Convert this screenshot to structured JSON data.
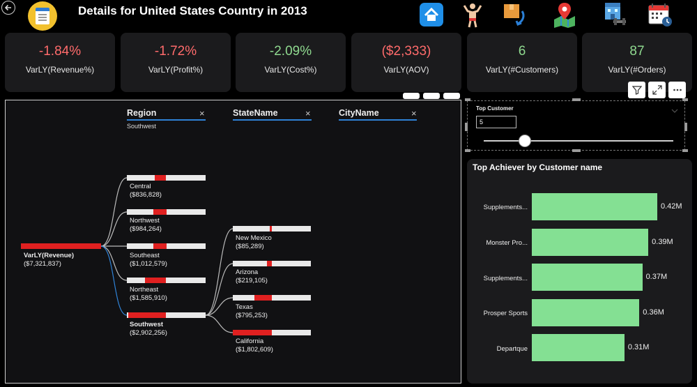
{
  "header": {
    "title": "Details for United States Country in 2013",
    "nav_icons": [
      "home-icon",
      "bodybuilder-icon",
      "package-return-icon",
      "map-pin-icon",
      "gym-icon",
      "calendar-clock-icon"
    ]
  },
  "kpis": [
    {
      "value": "-1.84%",
      "label": "VarLY(Revenue%)",
      "color": "#ff6b6b"
    },
    {
      "value": "-1.72%",
      "label": "VarLY(Profit%)",
      "color": "#ff6b6b"
    },
    {
      "value": "-2.09%",
      "label": "VarLY(Cost%)",
      "color": "#8fd98f"
    },
    {
      "value": "($2,333)",
      "label": "VarLY(AOV)",
      "color": "#ff6b6b"
    },
    {
      "value": "6",
      "label": "VarLY(#Customers)",
      "color": "#8fd98f"
    },
    {
      "value": "87",
      "label": "VarLY(#Orders)",
      "color": "#8fd98f"
    }
  ],
  "tree": {
    "levels": [
      {
        "name": "Region",
        "selected": "Southwest"
      },
      {
        "name": "StateName",
        "selected": ""
      },
      {
        "name": "CityName",
        "selected": ""
      }
    ],
    "root": {
      "label": "VarLY(Revenue)",
      "value": "($7,321,837)"
    },
    "regions": [
      {
        "name": "Central",
        "value": "($836,828)"
      },
      {
        "name": "Northwest",
        "value": "($984,264)"
      },
      {
        "name": "Southeast",
        "value": "($1,012,579)"
      },
      {
        "name": "Northeast",
        "value": "($1,585,910)"
      },
      {
        "name": "Southwest",
        "value": "($2,902,256)"
      }
    ],
    "states": [
      {
        "name": "New Mexico",
        "value": "($85,289)"
      },
      {
        "name": "Arizona",
        "value": "($219,105)"
      },
      {
        "name": "Texas",
        "value": "($795,253)"
      },
      {
        "name": "California",
        "value": "($1,802,609)"
      }
    ]
  },
  "slicer": {
    "title": "Top Customer",
    "value": "5"
  },
  "achiever_chart": {
    "title": "Top Achiever by Customer name",
    "categories": [
      "Supplements...",
      "Monster Pro...",
      "Supplements...",
      "Prosper Sports",
      "Departque"
    ],
    "values": [
      "0.42M",
      "0.39M",
      "0.37M",
      "0.36M",
      "0.31M"
    ]
  },
  "chart_data": {
    "type": "bar",
    "title": "Top Achiever by Customer name",
    "categories": [
      "Supplements...",
      "Monster Pro...",
      "Supplements...",
      "Prosper Sports",
      "Departque"
    ],
    "values": [
      0.42,
      0.39,
      0.37,
      0.36,
      0.31
    ],
    "unit": "M",
    "orientation": "horizontal",
    "color": "#84e093"
  }
}
